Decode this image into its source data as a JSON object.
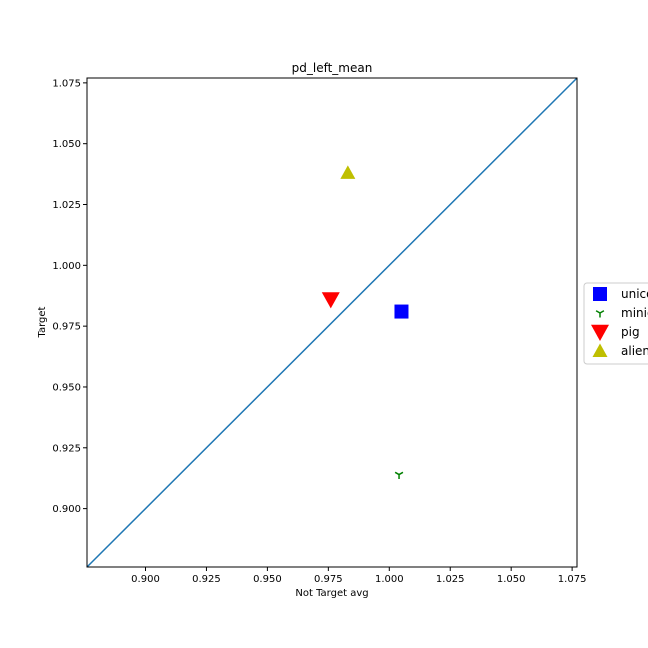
{
  "chart_data": {
    "type": "scatter",
    "title": "pd_left_mean",
    "xlabel": "Not Target avg",
    "ylabel": "Target",
    "xlim": [
      0.876,
      1.077
    ],
    "ylim": [
      0.876,
      1.077
    ],
    "xticks": [
      "0.900",
      "0.925",
      "0.950",
      "0.975",
      "1.000",
      "1.025",
      "1.050",
      "1.075"
    ],
    "yticks": [
      "0.900",
      "0.925",
      "0.950",
      "0.975",
      "1.000",
      "1.025",
      "1.050",
      "1.075"
    ],
    "xtick_values": [
      0.9,
      0.925,
      0.95,
      0.975,
      1.0,
      1.025,
      1.05,
      1.075
    ],
    "ytick_values": [
      0.9,
      0.925,
      0.95,
      0.975,
      1.0,
      1.025,
      1.05,
      1.075
    ],
    "reference_line": {
      "type": "identity",
      "color": "#1f77b4"
    },
    "legend_position": "center-right",
    "grid": false,
    "series": [
      {
        "name": "unicorn",
        "legend_text": "unico",
        "marker": "square",
        "color": "#0000ff",
        "x": 1.005,
        "y": 0.981
      },
      {
        "name": "minion",
        "legend_text": "minio",
        "marker": "tri_down",
        "color": "#008000",
        "x": 1.004,
        "y": 0.914
      },
      {
        "name": "pig",
        "legend_text": "pig",
        "marker": "triangle_down",
        "color": "#ff0000",
        "x": 0.976,
        "y": 0.986
      },
      {
        "name": "alien",
        "legend_text": "alien",
        "marker": "triangle_up",
        "color": "#bfbf00",
        "x": 0.983,
        "y": 1.038
      }
    ]
  }
}
